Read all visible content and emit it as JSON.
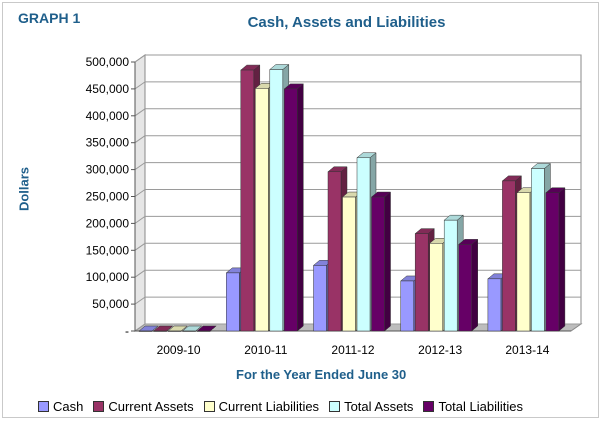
{
  "header": {
    "graph_label": "GRAPH 1"
  },
  "chart_data": {
    "type": "bar",
    "title": "Cash, Assets and Liabilities",
    "xlabel": "For the Year Ended June 30",
    "ylabel": "Dollars",
    "ylim": [
      0,
      500000
    ],
    "yticks": [
      "-",
      "50,000",
      "100,000",
      "150,000",
      "200,000",
      "250,000",
      "300,000",
      "350,000",
      "400,000",
      "450,000",
      "500,000"
    ],
    "categories": [
      "2009-10",
      "2010-11",
      "2011-12",
      "2012-13",
      "2013-14"
    ],
    "series": [
      {
        "name": "Cash",
        "color": "#9999ff",
        "values": [
          0,
          108000,
          122000,
          93000,
          97000
        ]
      },
      {
        "name": "Current Assets",
        "color": "#993366",
        "values": [
          0,
          485000,
          296000,
          181000,
          279000
        ]
      },
      {
        "name": "Current Liabilities",
        "color": "#ffffcc",
        "values": [
          0,
          451000,
          249000,
          163000,
          257000
        ]
      },
      {
        "name": "Total Assets",
        "color": "#ccffff",
        "values": [
          0,
          486000,
          322000,
          206000,
          302000
        ]
      },
      {
        "name": "Total Liabilities",
        "color": "#660066",
        "values": [
          0,
          450000,
          249000,
          161000,
          257000
        ]
      }
    ],
    "grid": true,
    "legend_position": "bottom"
  }
}
